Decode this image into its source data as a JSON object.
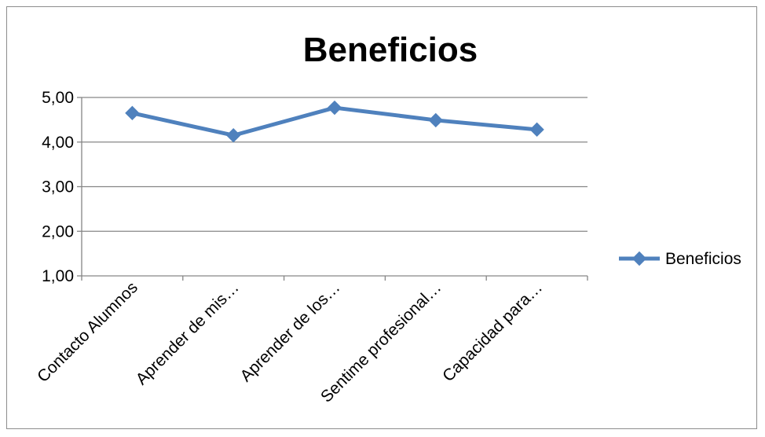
{
  "chart_data": {
    "type": "line",
    "title": "Beneficios",
    "categories": [
      "Contacto Alumnos",
      "Aprender de mis…",
      "Aprender de los…",
      "Sentime profesional…",
      "Capacidad para…"
    ],
    "series": [
      {
        "name": "Beneficios",
        "values": [
          4.65,
          4.15,
          4.77,
          4.49,
          4.28
        ]
      }
    ],
    "yticks": [
      "1,00",
      "2,00",
      "3,00",
      "4,00",
      "5,00"
    ],
    "ylim": [
      1,
      5
    ],
    "grid": true,
    "legend": "right",
    "colors": {
      "series": "#4f81bd",
      "grid": "#868686"
    }
  }
}
